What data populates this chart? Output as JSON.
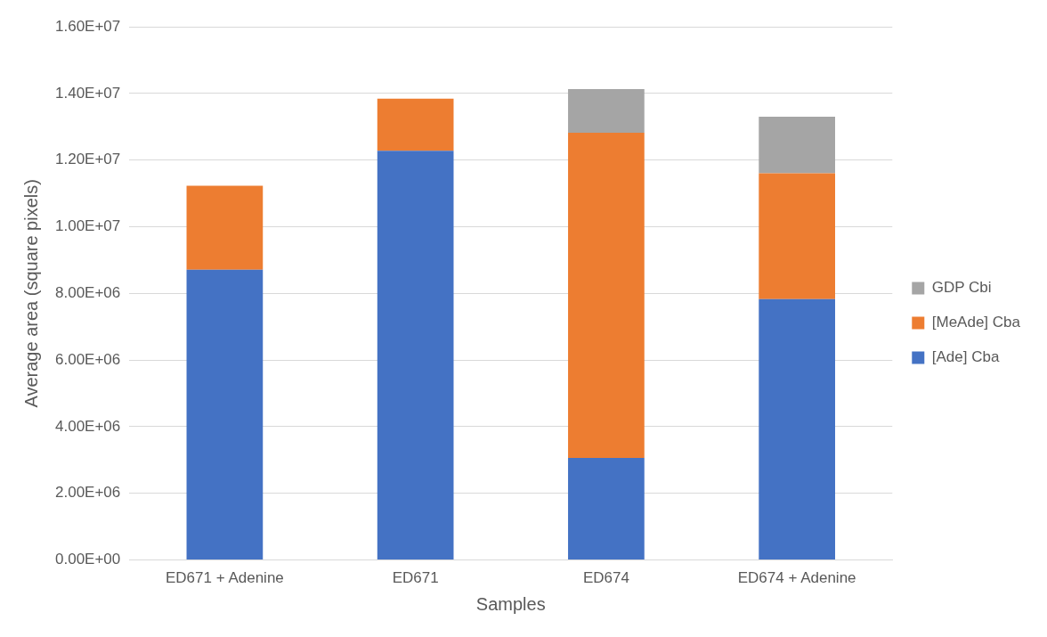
{
  "chart_data": {
    "type": "bar",
    "stacked": true,
    "xlabel": "Samples",
    "ylabel": "Average area (square pixels)",
    "categories": [
      "ED671 + Adenine",
      "ED671",
      "ED674",
      "ED674 + Adenine"
    ],
    "series": [
      {
        "name": "[Ade] Cba",
        "color": "#4472c4",
        "values": [
          8710000,
          12280000,
          3060000,
          7830000
        ]
      },
      {
        "name": "[MeAde] Cba",
        "color": "#ed7d31",
        "values": [
          2520000,
          1560000,
          9760000,
          3770000
        ]
      },
      {
        "name": "GDP Cbi",
        "color": "#a5a5a5",
        "values": [
          null,
          null,
          1310000,
          1700000
        ]
      }
    ],
    "ylim": [
      0,
      16000000
    ],
    "yticks": [
      {
        "value": 0,
        "label": "0.00E+00"
      },
      {
        "value": 2000000,
        "label": "2.00E+06"
      },
      {
        "value": 4000000,
        "label": "4.00E+06"
      },
      {
        "value": 6000000,
        "label": "6.00E+06"
      },
      {
        "value": 8000000,
        "label": "8.00E+06"
      },
      {
        "value": 10000000,
        "label": "1.00E+07"
      },
      {
        "value": 12000000,
        "label": "1.20E+07"
      },
      {
        "value": 14000000,
        "label": "1.40E+07"
      },
      {
        "value": 16000000,
        "label": "1.60E+07"
      }
    ],
    "grid": "y",
    "legend": "right"
  }
}
